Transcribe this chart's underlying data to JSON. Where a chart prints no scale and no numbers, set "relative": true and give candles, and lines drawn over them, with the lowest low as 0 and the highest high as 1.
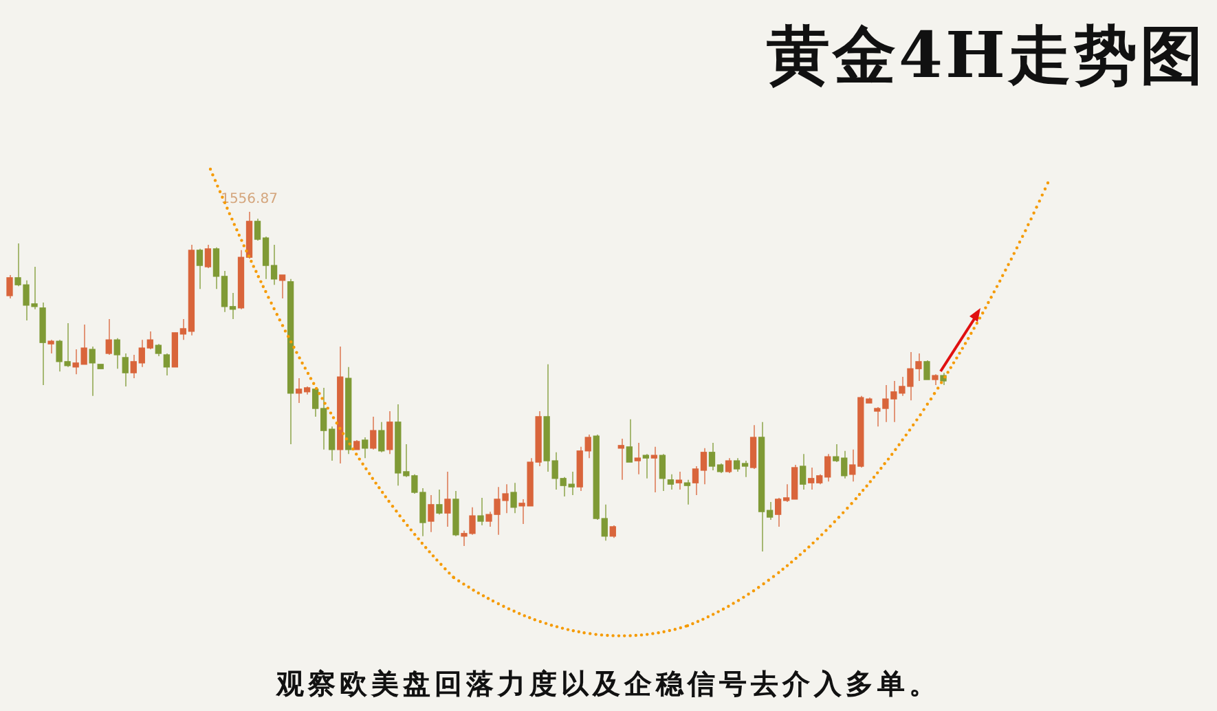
{
  "chart_data": {
    "type": "candlestick",
    "title": "黄金4H走势图",
    "relative": true,
    "annotations": [
      {
        "text": "1556.87",
        "y": 1
      },
      "观察欧美盘回落力度以及企稳信号去介入多单。"
    ],
    "categories": [
      null,
      null,
      null,
      null,
      null,
      null,
      null,
      null,
      null,
      null,
      null,
      null,
      null,
      null,
      null,
      null,
      null,
      null,
      null,
      null,
      null,
      null,
      null,
      null,
      null,
      null,
      null,
      null,
      null,
      null,
      null,
      null,
      null,
      null,
      null,
      null,
      null,
      null,
      null,
      null,
      null,
      null,
      null,
      null,
      null,
      null,
      null,
      null,
      null,
      null,
      null,
      null,
      null,
      null,
      null,
      null,
      null,
      null,
      null,
      null,
      null,
      null,
      null,
      null,
      null,
      null,
      null,
      null,
      null,
      null,
      null,
      null,
      null,
      null,
      null,
      null,
      null,
      null,
      null,
      null,
      null,
      null,
      null,
      null,
      null,
      null,
      null,
      null,
      null,
      null,
      null,
      null,
      null,
      null,
      null,
      null,
      null,
      null,
      null,
      null,
      null,
      null,
      null,
      null,
      null,
      null,
      null,
      null,
      null,
      null,
      null,
      null,
      null,
      null
    ],
    "ohlc": [
      [
        0.753,
        0.814,
        0.745,
        0.806
      ],
      [
        0.806,
        0.907,
        0.781,
        0.785
      ],
      [
        0.785,
        0.798,
        0.68,
        0.725
      ],
      [
        0.729,
        0.838,
        0.713,
        0.721
      ],
      [
        0.717,
        0.733,
        0.49,
        0.615
      ],
      [
        0.611,
        0.623,
        0.583,
        0.619
      ],
      [
        0.619,
        0.623,
        0.53,
        0.559
      ],
      [
        0.559,
        0.672,
        0.543,
        0.547
      ],
      [
        0.543,
        0.595,
        0.522,
        0.555
      ],
      [
        0.551,
        0.668,
        0.551,
        0.599
      ],
      [
        0.595,
        0.603,
        0.458,
        0.555
      ],
      [
        0.551,
        0.551,
        0.538,
        0.538
      ],
      [
        0.583,
        0.684,
        0.579,
        0.623
      ],
      [
        0.623,
        0.628,
        0.538,
        0.579
      ],
      [
        0.571,
        0.583,
        0.486,
        0.526
      ],
      [
        0.526,
        0.579,
        0.51,
        0.559
      ],
      [
        0.555,
        0.623,
        0.543,
        0.599
      ],
      [
        0.599,
        0.648,
        0.595,
        0.623
      ],
      [
        0.607,
        0.611,
        0.575,
        0.583
      ],
      [
        0.579,
        0.583,
        0.518,
        0.543
      ],
      [
        0.543,
        0.644,
        0.543,
        0.644
      ],
      [
        0.64,
        0.684,
        0.623,
        0.656
      ],
      [
        0.648,
        0.903,
        0.636,
        0.887
      ],
      [
        0.887,
        0.891,
        0.773,
        0.842
      ],
      [
        0.838,
        0.903,
        0.834,
        0.891
      ],
      [
        0.891,
        0.895,
        0.773,
        0.81
      ],
      [
        0.81,
        0.826,
        0.705,
        0.721
      ],
      [
        0.721,
        0.761,
        0.684,
        0.713
      ],
      [
        0.717,
        0.887,
        0.713,
        0.866
      ],
      [
        0.866,
        1.0,
        0.862,
        0.972
      ],
      [
        0.972,
        0.98,
        0.915,
        0.919
      ],
      [
        0.923,
        0.927,
        0.802,
        0.842
      ],
      [
        0.842,
        0.903,
        0.785,
        0.802
      ],
      [
        0.798,
        0.814,
        0.745,
        0.814
      ],
      [
        0.794,
        0.802,
        0.316,
        0.466
      ],
      [
        0.466,
        0.51,
        0.437,
        0.478
      ],
      [
        0.47,
        0.486,
        0.462,
        0.482
      ],
      [
        0.478,
        0.482,
        0.397,
        0.421
      ],
      [
        0.421,
        0.482,
        0.3,
        0.356
      ],
      [
        0.36,
        0.368,
        0.267,
        0.3
      ],
      [
        0.3,
        0.603,
        0.259,
        0.514
      ],
      [
        0.51,
        0.543,
        0.287,
        0.3
      ],
      [
        0.3,
        0.328,
        0.3,
        0.324
      ],
      [
        0.328,
        0.336,
        0.275,
        0.304
      ],
      [
        0.304,
        0.397,
        0.3,
        0.356
      ],
      [
        0.356,
        0.381,
        0.292,
        0.296
      ],
      [
        0.3,
        0.413,
        0.287,
        0.381
      ],
      [
        0.381,
        0.433,
        0.194,
        0.231
      ],
      [
        0.235,
        0.316,
        0.219,
        0.223
      ],
      [
        0.223,
        0.227,
        0.17,
        0.174
      ],
      [
        0.174,
        0.186,
        0.045,
        0.085
      ],
      [
        0.089,
        0.166,
        0.057,
        0.138
      ],
      [
        0.138,
        0.182,
        0.109,
        0.113
      ],
      [
        0.113,
        0.235,
        0.073,
        0.154
      ],
      [
        0.154,
        0.178,
        0.045,
        0.049
      ],
      [
        0.045,
        0.061,
        0.016,
        0.053
      ],
      [
        0.053,
        0.13,
        0.049,
        0.105
      ],
      [
        0.105,
        0.158,
        0.077,
        0.089
      ],
      [
        0.089,
        0.117,
        0.073,
        0.109
      ],
      [
        0.109,
        0.19,
        0.049,
        0.154
      ],
      [
        0.15,
        0.198,
        0.113,
        0.17
      ],
      [
        0.174,
        0.202,
        0.113,
        0.13
      ],
      [
        0.134,
        0.154,
        0.081,
        0.142
      ],
      [
        0.134,
        0.275,
        0.134,
        0.263
      ],
      [
        0.263,
        0.413,
        0.251,
        0.397
      ],
      [
        0.397,
        0.551,
        0.235,
        0.267
      ],
      [
        0.267,
        0.292,
        0.182,
        0.215
      ],
      [
        0.215,
        0.219,
        0.162,
        0.194
      ],
      [
        0.198,
        0.235,
        0.166,
        0.19
      ],
      [
        0.19,
        0.308,
        0.178,
        0.296
      ],
      [
        0.296,
        0.344,
        0.275,
        0.336
      ],
      [
        0.34,
        0.344,
        0.093,
        0.097
      ],
      [
        0.097,
        0.138,
        0.032,
        0.045
      ],
      [
        0.045,
        0.077,
        0.04,
        0.073
      ],
      [
        0.304,
        0.332,
        0.211,
        0.308
      ],
      [
        0.308,
        0.389,
        0.263,
        0.263
      ],
      [
        0.267,
        0.32,
        0.227,
        0.275
      ],
      [
        0.283,
        0.287,
        0.215,
        0.275
      ],
      [
        0.275,
        0.308,
        0.174,
        0.279
      ],
      [
        0.283,
        0.287,
        0.178,
        0.215
      ],
      [
        0.211,
        0.227,
        0.182,
        0.198
      ],
      [
        0.202,
        0.235,
        0.182,
        0.206
      ],
      [
        0.202,
        0.211,
        0.138,
        0.194
      ],
      [
        0.202,
        0.251,
        0.166,
        0.243
      ],
      [
        0.239,
        0.304,
        0.198,
        0.292
      ],
      [
        0.292,
        0.32,
        0.239,
        0.251
      ],
      [
        0.255,
        0.259,
        0.231,
        0.235
      ],
      [
        0.235,
        0.275,
        0.231,
        0.267
      ],
      [
        0.267,
        0.275,
        0.235,
        0.243
      ],
      [
        0.255,
        0.267,
        0.219,
        0.251
      ],
      [
        0.247,
        0.372,
        0.243,
        0.336
      ],
      [
        0.336,
        0.381,
        0.0,
        0.117
      ],
      [
        0.121,
        0.146,
        0.093,
        0.101
      ],
      [
        0.109,
        0.158,
        0.073,
        0.154
      ],
      [
        0.15,
        0.198,
        0.146,
        0.158
      ],
      [
        0.154,
        0.255,
        0.154,
        0.247
      ],
      [
        0.251,
        0.287,
        0.182,
        0.198
      ],
      [
        0.202,
        0.247,
        0.182,
        0.215
      ],
      [
        0.202,
        0.227,
        0.198,
        0.223
      ],
      [
        0.219,
        0.287,
        0.206,
        0.279
      ],
      [
        0.279,
        0.316,
        0.263,
        0.267
      ],
      [
        0.275,
        0.296,
        0.215,
        0.223
      ],
      [
        0.227,
        0.3,
        0.206,
        0.255
      ],
      [
        0.251,
        0.458,
        0.247,
        0.453
      ],
      [
        0.437,
        0.453,
        0.437,
        0.449
      ],
      [
        0.413,
        0.425,
        0.368,
        0.421
      ],
      [
        0.421,
        0.49,
        0.381,
        0.449
      ],
      [
        0.449,
        0.502,
        0.381,
        0.47
      ],
      [
        0.466,
        0.514,
        0.458,
        0.486
      ],
      [
        0.486,
        0.587,
        0.445,
        0.538
      ],
      [
        0.538,
        0.583,
        0.502,
        0.559
      ],
      [
        0.559,
        0.563,
        0.506,
        0.506
      ],
      [
        0.506,
        0.522,
        0.49,
        0.518
      ],
      [
        0.518,
        0.526,
        0.49,
        0.502
      ]
    ],
    "colors": [
      "#d9653b",
      "#7f9a35",
      "#7f9a35",
      "#7f9a35",
      "#7f9a35",
      "#d9653b",
      "#7f9a35",
      "#7f9a35",
      "#d9653b",
      "#d9653b",
      "#7f9a35",
      "#7f9a35",
      "#d9653b",
      "#7f9a35",
      "#7f9a35",
      "#d9653b",
      "#d9653b",
      "#d9653b",
      "#7f9a35",
      "#7f9a35",
      "#d9653b",
      "#d9653b",
      "#d9653b",
      "#7f9a35",
      "#d9653b",
      "#7f9a35",
      "#7f9a35",
      "#7f9a35",
      "#d9653b",
      "#d9653b",
      "#7f9a35",
      "#7f9a35",
      "#7f9a35",
      "#d9653b",
      "#7f9a35",
      "#d9653b",
      "#d9653b",
      "#7f9a35",
      "#7f9a35",
      "#7f9a35",
      "#d9653b",
      "#7f9a35",
      "#d9653b",
      "#7f9a35",
      "#d9653b",
      "#7f9a35",
      "#d9653b",
      "#7f9a35",
      "#7f9a35",
      "#7f9a35",
      "#7f9a35",
      "#d9653b",
      "#7f9a35",
      "#d9653b",
      "#7f9a35",
      "#d9653b",
      "#d9653b",
      "#7f9a35",
      "#d9653b",
      "#d9653b",
      "#d9653b",
      "#7f9a35",
      "#d9653b",
      "#d9653b",
      "#d9653b",
      "#7f9a35",
      "#7f9a35",
      "#7f9a35",
      "#7f9a35",
      "#d9653b",
      "#d9653b",
      "#7f9a35",
      "#7f9a35",
      "#d9653b",
      "#d9653b",
      "#7f9a35",
      "#d9653b",
      "#7f9a35",
      "#d9653b",
      "#7f9a35",
      "#7f9a35",
      "#d9653b",
      "#7f9a35",
      "#d9653b",
      "#d9653b",
      "#7f9a35",
      "#7f9a35",
      "#d9653b",
      "#7f9a35",
      "#7f9a35",
      "#d9653b",
      "#7f9a35",
      "#7f9a35",
      "#d9653b",
      "#d9653b",
      "#d9653b",
      "#7f9a35",
      "#d9653b",
      "#d9653b",
      "#d9653b",
      "#7f9a35",
      "#7f9a35",
      "#d9653b",
      "#d9653b",
      "#d9653b",
      "#d9653b",
      "#d9653b",
      "#d9653b",
      "#d9653b",
      "#d9653b",
      "#d9653b",
      "#7f9a35",
      "#d9653b",
      "#7f9a35"
    ]
  }
}
